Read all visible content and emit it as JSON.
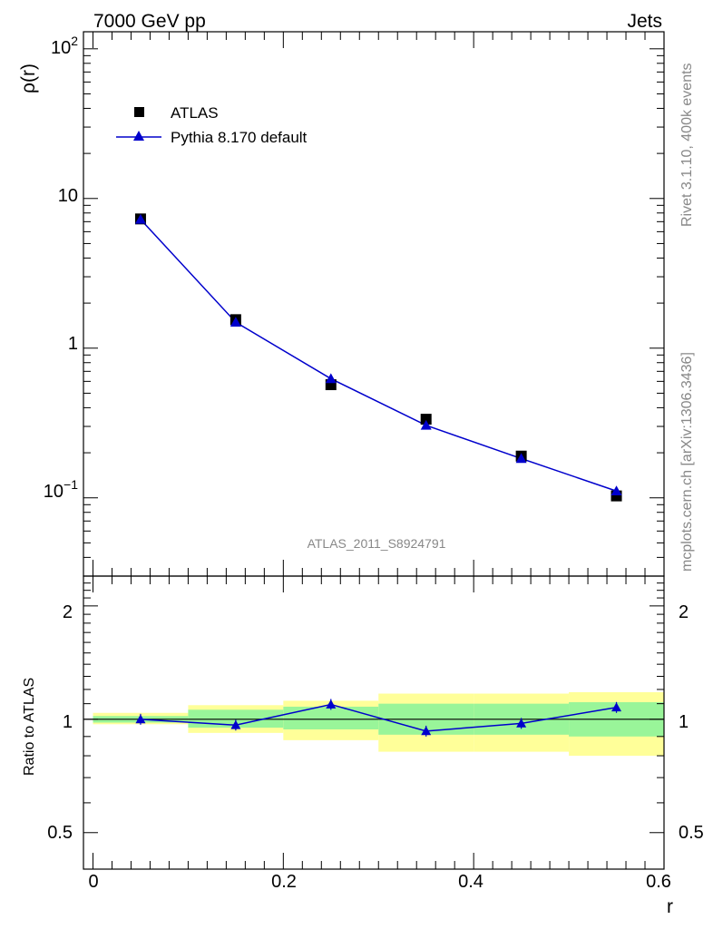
{
  "header": {
    "left_title": "7000 GeV pp",
    "right_title": "Jets",
    "watermark": "ATLAS_2011_S8924791"
  },
  "side_labels": {
    "rivet": "Rivet 3.1.10,  400k events",
    "mcplots": "mcplots.cern.ch [arXiv:1306.3436]"
  },
  "legend": {
    "data_label": "ATLAS",
    "mc_label": "Pythia 8.170 default"
  },
  "colors": {
    "data": "#000000",
    "mc": "#0000cc",
    "band_inner": "#99f599",
    "band_outer": "#ffff99"
  },
  "chart_data": [
    {
      "type": "scatter",
      "panel": "main",
      "ylabel": "ρ(r)",
      "xlim": [
        -0.01,
        0.6
      ],
      "ylim": [
        0.03,
        130
      ],
      "yscale": "log",
      "y_tick_labels": [
        "10^-1",
        "1",
        "10",
        "10^2"
      ],
      "x": [
        0.05,
        0.15,
        0.25,
        0.35,
        0.45,
        0.55
      ],
      "series": [
        {
          "name": "ATLAS",
          "values": [
            7.3,
            1.55,
            0.57,
            0.335,
            0.19,
            0.103
          ],
          "marker": "square"
        },
        {
          "name": "Pythia 8.170 default",
          "values": [
            7.25,
            1.49,
            0.625,
            0.305,
            0.183,
            0.111
          ],
          "marker": "triangle",
          "line": true
        }
      ]
    },
    {
      "type": "line",
      "panel": "ratio",
      "xlabel": "r",
      "ylabel": "Ratio to ATLAS",
      "xlim": [
        -0.01,
        0.6
      ],
      "ylim": [
        0.4,
        2.4
      ],
      "yscale": "log",
      "x_tick_labels": [
        "0",
        "0.2",
        "0.4",
        "0.6"
      ],
      "y_tick_labels": [
        "0.5",
        "1",
        "2"
      ],
      "bins": [
        [
          0.0,
          0.1
        ],
        [
          0.1,
          0.2
        ],
        [
          0.2,
          0.3
        ],
        [
          0.3,
          0.4
        ],
        [
          0.4,
          0.5
        ],
        [
          0.5,
          0.6
        ]
      ],
      "band_inner": [
        [
          0.98,
          1.02
        ],
        [
          0.95,
          1.06
        ],
        [
          0.94,
          1.08
        ],
        [
          0.91,
          1.1
        ],
        [
          0.91,
          1.1
        ],
        [
          0.9,
          1.11
        ]
      ],
      "band_outer": [
        [
          0.97,
          1.04
        ],
        [
          0.92,
          1.09
        ],
        [
          0.88,
          1.12
        ],
        [
          0.82,
          1.17
        ],
        [
          0.82,
          1.17
        ],
        [
          0.8,
          1.18
        ]
      ],
      "series": [
        {
          "name": "Pythia 8.170 default",
          "x": [
            0.05,
            0.15,
            0.25,
            0.35,
            0.45,
            0.55
          ],
          "values": [
            1.0,
            0.965,
            1.095,
            0.93,
            0.975,
            1.075
          ]
        }
      ],
      "reference_line": 1
    }
  ]
}
